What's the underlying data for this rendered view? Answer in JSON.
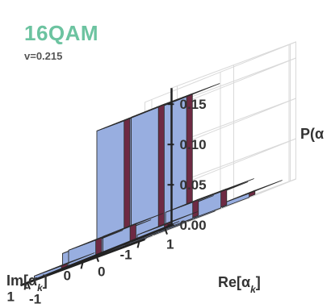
{
  "title": "16QAM",
  "subtitle": "v=0.215",
  "chart_data": {
    "type": "bar3d",
    "x_axis": {
      "label": "Re[αk]",
      "label_main": "Re[α",
      "label_sub": "k",
      "ticks": [
        "1",
        "0",
        "-1"
      ]
    },
    "y_axis": {
      "label": "Im[αk]",
      "label_main": "Im[α",
      "label_sub": "k",
      "ticks": [
        "-1",
        "0",
        "1"
      ]
    },
    "z_axis": {
      "label": "P(α)",
      "label_text": "P(α",
      "ticks": [
        "0.00",
        "0.05",
        "0.10",
        "0.15"
      ],
      "zlim": [
        0,
        0.17
      ]
    },
    "levels": [
      -0.75,
      -0.25,
      0.25,
      0.75
    ],
    "grid": true,
    "bars": [
      {
        "re": -0.75,
        "im": -0.75,
        "p": 0.005
      },
      {
        "re": -0.75,
        "im": -0.25,
        "p": 0.02
      },
      {
        "re": -0.75,
        "im": 0.25,
        "p": 0.02
      },
      {
        "re": -0.75,
        "im": 0.75,
        "p": 0.005
      },
      {
        "re": -0.25,
        "im": -0.75,
        "p": 0.02
      },
      {
        "re": -0.25,
        "im": -0.25,
        "p": 0.155
      },
      {
        "re": -0.25,
        "im": 0.25,
        "p": 0.155
      },
      {
        "re": -0.25,
        "im": 0.75,
        "p": 0.02
      },
      {
        "re": 0.25,
        "im": -0.75,
        "p": 0.02
      },
      {
        "re": 0.25,
        "im": -0.25,
        "p": 0.155
      },
      {
        "re": 0.25,
        "im": 0.25,
        "p": 0.155
      },
      {
        "re": 0.25,
        "im": 0.75,
        "p": 0.02
      },
      {
        "re": 0.75,
        "im": -0.75,
        "p": 0.005
      },
      {
        "re": 0.75,
        "im": -0.25,
        "p": 0.02
      },
      {
        "re": 0.75,
        "im": 0.25,
        "p": 0.02
      },
      {
        "re": 0.75,
        "im": 0.75,
        "p": 0.005
      }
    ],
    "colors": {
      "top": "#fce2ad",
      "left_face": "#6e2a43",
      "right_face": "#98aee0",
      "title": "#6cc3a0"
    }
  }
}
